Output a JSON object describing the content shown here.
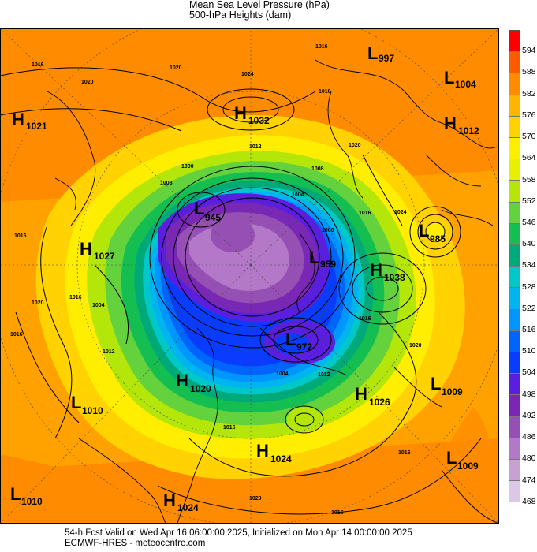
{
  "legend": {
    "mslp_label": "Mean Sea Level Pressure (hPa)",
    "heights_label": "500-hPa Heights (dam)"
  },
  "colorbar": {
    "levels": [
      "594",
      "588",
      "582",
      "576",
      "570",
      "564",
      "558",
      "552",
      "546",
      "540",
      "534",
      "528",
      "522",
      "516",
      "510",
      "504",
      "498",
      "492",
      "486",
      "480",
      "474",
      "468"
    ],
    "colors": [
      "#ff0000",
      "#ff5a00",
      "#ff8c00",
      "#ffb400",
      "#ffd200",
      "#ffee00",
      "#e6f000",
      "#b4e60a",
      "#64d23c",
      "#14be50",
      "#00aa78",
      "#00c8c8",
      "#00b4f0",
      "#0096ff",
      "#0064ff",
      "#0a3cff",
      "#5a1ede",
      "#7828b4",
      "#9650b4",
      "#b478c8",
      "#c8a0d2",
      "#dcc8e6",
      "#ffffff"
    ]
  },
  "pressure_centers": [
    {
      "type": "L",
      "value": "997"
    },
    {
      "type": "L",
      "value": "1004"
    },
    {
      "type": "H",
      "value": "1021"
    },
    {
      "type": "H",
      "value": "1032"
    },
    {
      "type": "H",
      "value": "1012"
    },
    {
      "type": "L",
      "value": "945"
    },
    {
      "type": "L",
      "value": "985"
    },
    {
      "type": "H",
      "value": "1027"
    },
    {
      "type": "L",
      "value": "959"
    },
    {
      "type": "H",
      "value": "1038"
    },
    {
      "type": "L",
      "value": "972"
    },
    {
      "type": "H",
      "value": "1020"
    },
    {
      "type": "L",
      "value": "1009"
    },
    {
      "type": "L",
      "value": "1010"
    },
    {
      "type": "H",
      "value": "1026"
    },
    {
      "type": "H",
      "value": "1024"
    },
    {
      "type": "L",
      "value": "1009"
    },
    {
      "type": "L",
      "value": "1010"
    },
    {
      "type": "H",
      "value": "1024"
    }
  ],
  "isobar_labels": [
    "1016",
    "1020",
    "1024",
    "1016",
    "1016",
    "1020",
    "1016",
    "1020",
    "1016",
    "1000",
    "1008",
    "1012",
    "1004",
    "1000",
    "1008",
    "1004",
    "1012",
    "1016",
    "1024",
    "1016",
    "1020",
    "1016",
    "1012",
    "1004",
    "1016",
    "1020",
    "1016",
    "1020",
    "1015"
  ],
  "footer": {
    "line1": "54-h Fcst Valid on Wed Apr 16 06:00:00 2025, Initialized on Mon Apr 14 00:00:00 2025",
    "line2": "ECMWF-HRES   -  meteocentre.com"
  }
}
